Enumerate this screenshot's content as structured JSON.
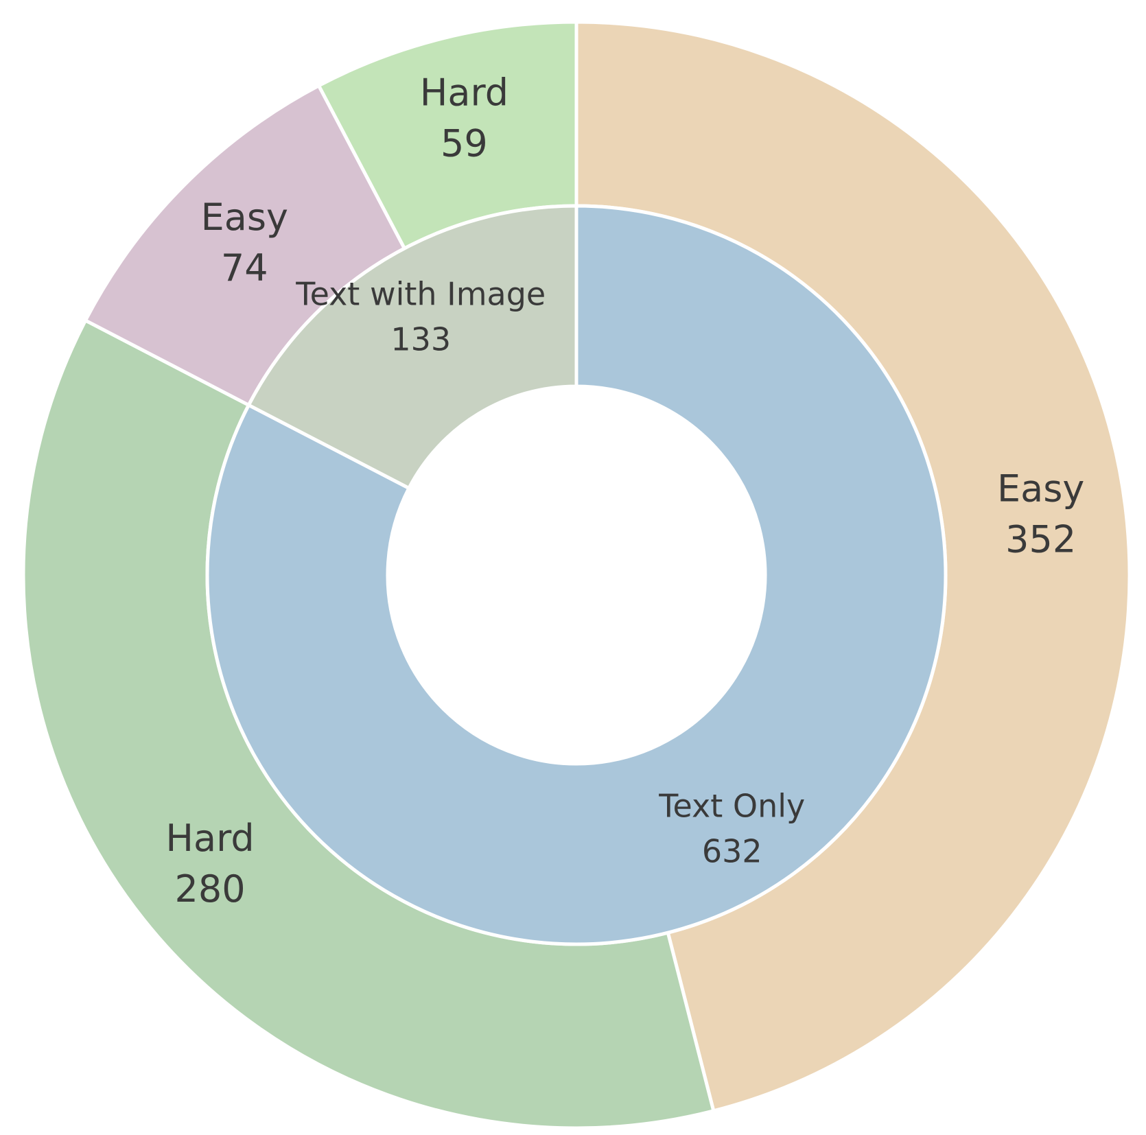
{
  "chart_data": {
    "type": "pie",
    "inner_ring": [
      {
        "label": "Text Only",
        "value": 632,
        "color": "#aac6da"
      },
      {
        "label": "Text with Image",
        "value": 133,
        "color": "#c8d2c2"
      }
    ],
    "outer_ring": [
      {
        "label": "Easy",
        "value": 352,
        "color": "#ebd5b6",
        "parent": "Text Only"
      },
      {
        "label": "Hard",
        "value": 280,
        "color": "#b5d4b3",
        "parent": "Text Only"
      },
      {
        "label": "Easy",
        "value": 74,
        "color": "#d7c2d1",
        "parent": "Text with Image"
      },
      {
        "label": "Hard",
        "value": 59,
        "color": "#c3e4b8",
        "parent": "Text with Image"
      }
    ]
  }
}
